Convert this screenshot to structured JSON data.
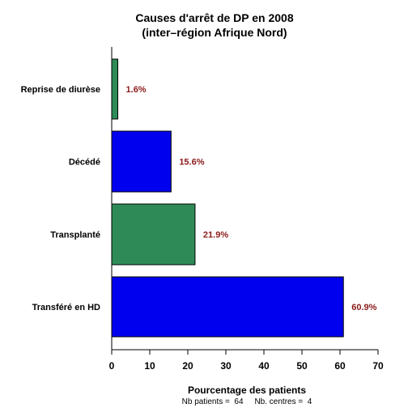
{
  "chart_data": {
    "type": "bar",
    "orientation": "horizontal",
    "title_line1": "Causes d'arrêt de DP en 2008",
    "title_line2": "(inter–région Afrique Nord)",
    "categories": [
      "Reprise de diurèse",
      "Décédé",
      "Transplanté",
      "Transféré en HD"
    ],
    "values": [
      1.6,
      15.6,
      21.9,
      60.9
    ],
    "data_labels": [
      "1.6%",
      "15.6%",
      "21.9%",
      "60.9%"
    ],
    "bar_colors": [
      "#2e8b57",
      "#0000ee",
      "#2e8b57",
      "#0000ee"
    ],
    "label_color": "#8b1a1a",
    "xlabel": "Pourcentage des patients",
    "xlim": [
      0,
      70
    ],
    "xticks": [
      0,
      10,
      20,
      30,
      40,
      50,
      60,
      70
    ],
    "grid": false,
    "footnote": "Nb patients =  64     Nb. centres =  4"
  }
}
